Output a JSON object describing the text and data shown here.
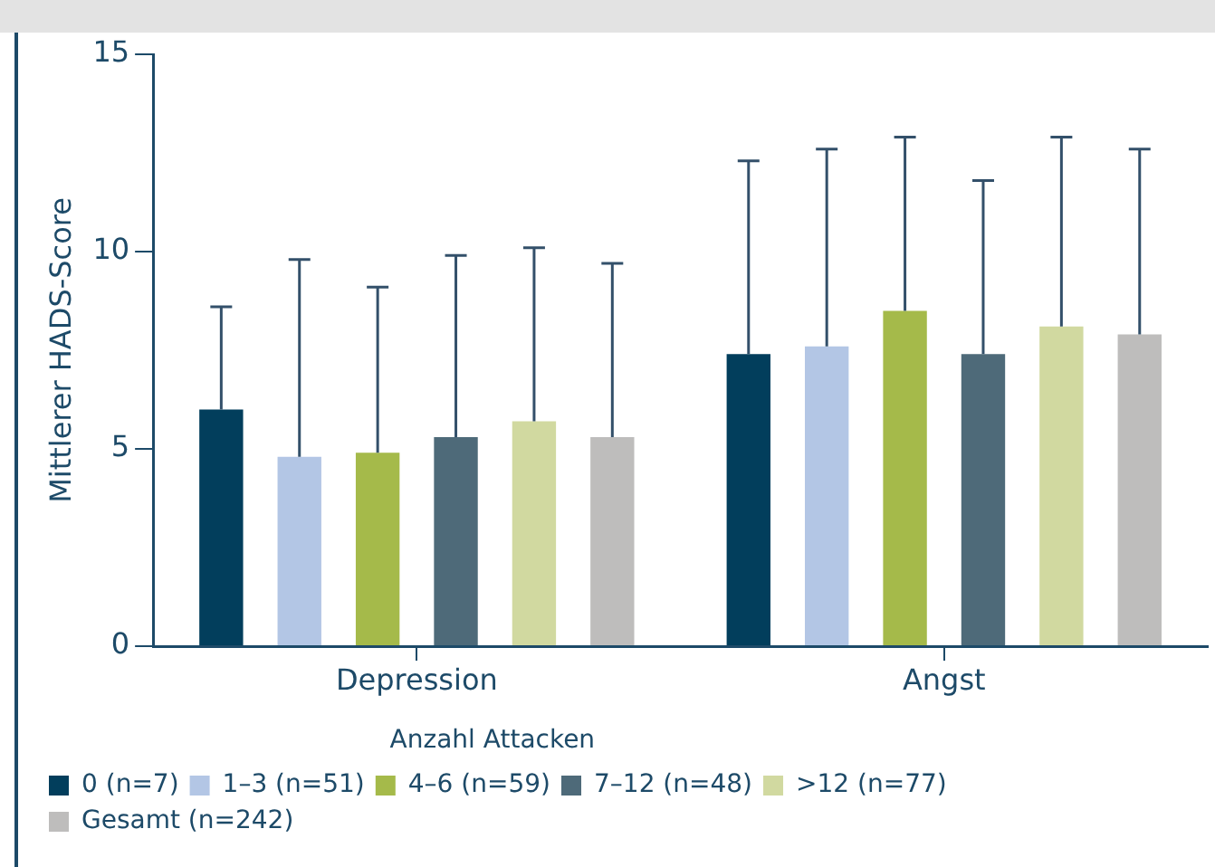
{
  "chart_data": {
    "type": "bar",
    "ylabel": "Mittlerer HADS-Score",
    "legend_title": "Anzahl Attacken",
    "categories": [
      "Depression",
      "Angst"
    ],
    "series": [
      {
        "name": "0 (n=7)",
        "color": "#023e5c",
        "values": [
          6.0,
          7.4
        ],
        "errors": [
          [
            6.0,
            8.6
          ],
          [
            7.4,
            12.3
          ]
        ]
      },
      {
        "name": "1–3 (n=51)",
        "color": "#b3c6e5",
        "values": [
          4.8,
          7.6
        ],
        "errors": [
          [
            4.8,
            9.8
          ],
          [
            7.6,
            12.6
          ]
        ]
      },
      {
        "name": "4–6 (n=59)",
        "color": "#a5ba4a",
        "values": [
          4.9,
          8.5
        ],
        "errors": [
          [
            4.9,
            9.1
          ],
          [
            8.5,
            12.9
          ]
        ]
      },
      {
        "name": "7–12 (n=48)",
        "color": "#4e6a79",
        "values": [
          5.3,
          7.4
        ],
        "errors": [
          [
            5.3,
            9.9
          ],
          [
            7.4,
            11.8
          ]
        ]
      },
      {
        "name": ">12 (n=77)",
        "color": "#d1d9a0",
        "values": [
          5.7,
          8.1
        ],
        "errors": [
          [
            5.7,
            10.1
          ],
          [
            8.1,
            12.9
          ]
        ]
      },
      {
        "name": "Gesamt (n=242)",
        "color": "#bebdbc",
        "values": [
          5.3,
          7.9
        ],
        "errors": [
          [
            5.3,
            9.7
          ],
          [
            7.9,
            12.6
          ]
        ]
      }
    ],
    "ylim": [
      0,
      15
    ],
    "yticks": [
      0,
      5,
      10,
      15
    ],
    "grid": false,
    "legend": "bottom"
  }
}
